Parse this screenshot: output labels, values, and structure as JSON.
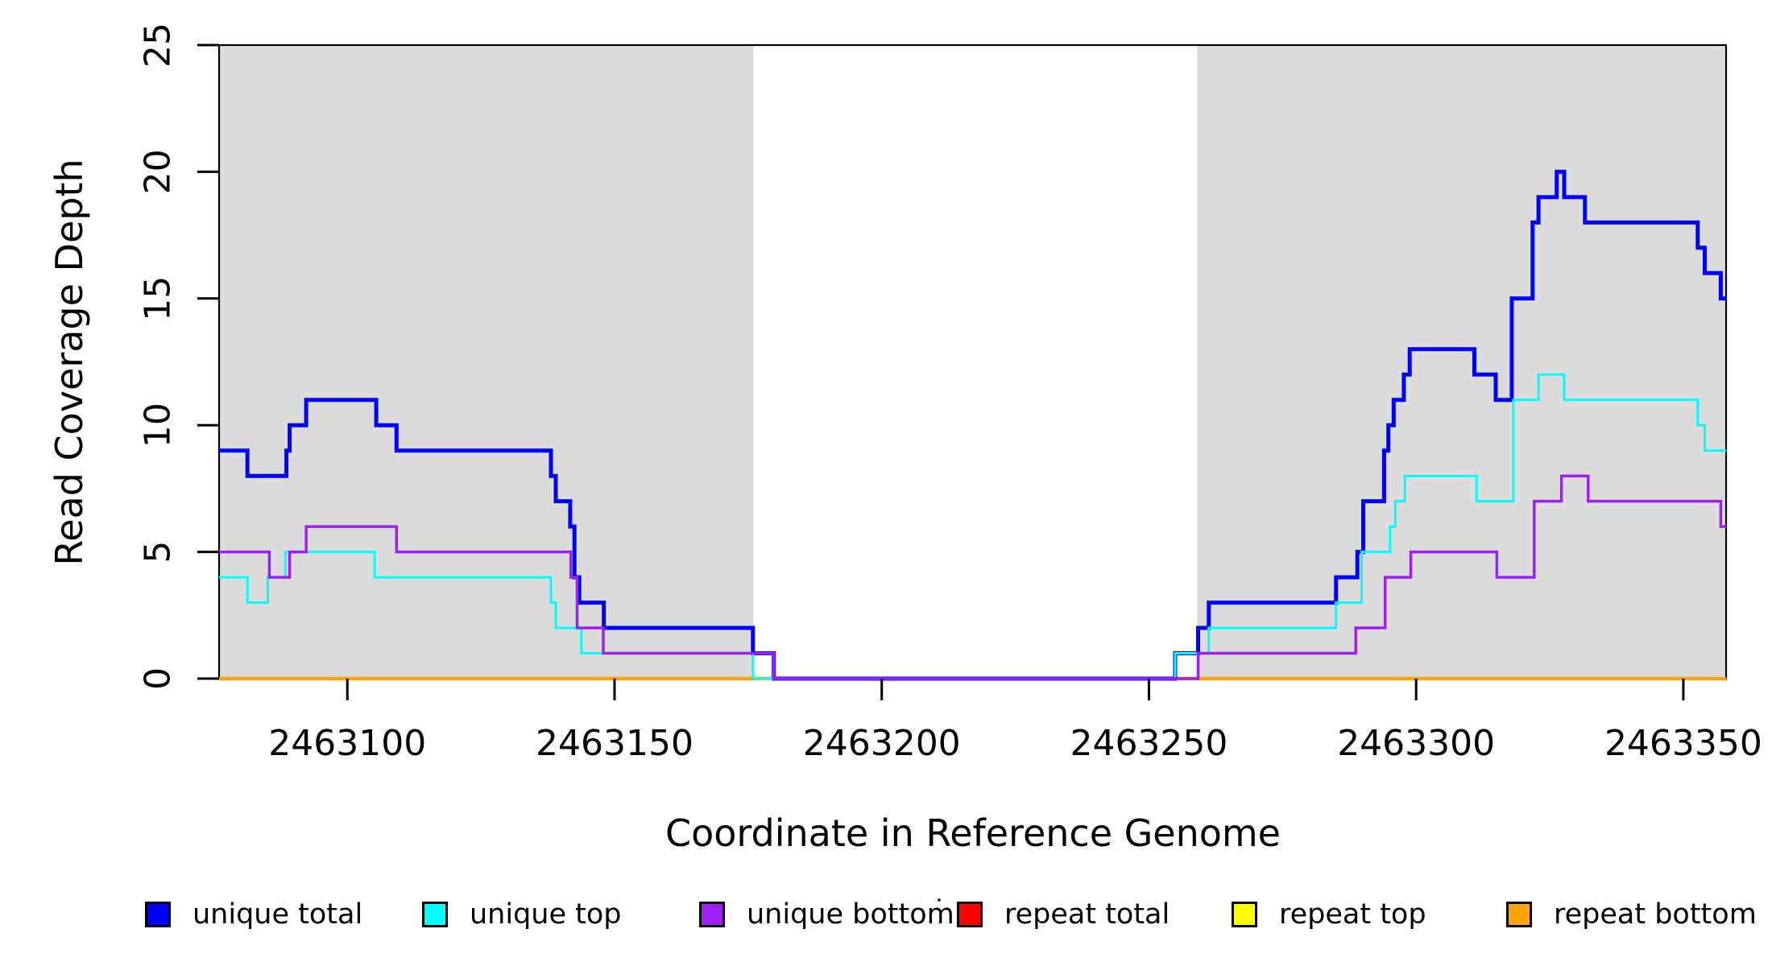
{
  "figure": {
    "background_color": "#FFFFFF",
    "shaded_region_color": "#DCDCDC",
    "axis_color": "#000000",
    "text_color": "#000000"
  },
  "chart_data": {
    "type": "line",
    "subtype": "step-coverage-plot",
    "title": "",
    "xlabel": "Coordinate in Reference Genome",
    "ylabel": "Read Coverage Depth",
    "xlim": [
      2463076,
      2463358
    ],
    "ylim": [
      0,
      25
    ],
    "x_ticks": [
      2463100,
      2463150,
      2463200,
      2463250,
      2463300,
      2463350
    ],
    "y_ticks": [
      0,
      5,
      10,
      15,
      20,
      25
    ],
    "grid": false,
    "legend_position": "bottom-horizontal",
    "shaded_regions": [
      {
        "name": "left-repeat-flank",
        "x0": 2463076,
        "x1": 2463176
      },
      {
        "name": "right-repeat-flank",
        "x0": 2463259,
        "x1": 2463358
      }
    ],
    "series": [
      {
        "label": "unique total",
        "color": "#0000FF",
        "line_width": 5,
        "draw_order": 4,
        "end_x": 2463358,
        "steps": [
          [
            2463076,
            9
          ],
          [
            2463081.3,
            8
          ],
          [
            2463088.6,
            9
          ],
          [
            2463089.2,
            10
          ],
          [
            2463092.3,
            11
          ],
          [
            2463105.4,
            10
          ],
          [
            2463109.2,
            9
          ],
          [
            2463138.1,
            8
          ],
          [
            2463139,
            7
          ],
          [
            2463141.7,
            6
          ],
          [
            2463142.5,
            4
          ],
          [
            2463143.4,
            3
          ],
          [
            2463148,
            2
          ],
          [
            2463175.9,
            1
          ],
          [
            2463179.8,
            0
          ],
          [
            2463254.9,
            1
          ],
          [
            2463259.2,
            2
          ],
          [
            2463261.2,
            3
          ],
          [
            2463285,
            4
          ],
          [
            2463289,
            5
          ],
          [
            2463290.1,
            7
          ],
          [
            2463294,
            9
          ],
          [
            2463294.8,
            10
          ],
          [
            2463295.8,
            11
          ],
          [
            2463297.7,
            12
          ],
          [
            2463298.8,
            13
          ],
          [
            2463310.9,
            12
          ],
          [
            2463314.9,
            11
          ],
          [
            2463317.9,
            15
          ],
          [
            2463321.8,
            18
          ],
          [
            2463322.9,
            19
          ],
          [
            2463326.3,
            20
          ],
          [
            2463327.7,
            19
          ],
          [
            2463331.6,
            18
          ],
          [
            2463352.7,
            17
          ],
          [
            2463354,
            16
          ],
          [
            2463357,
            15
          ]
        ]
      },
      {
        "label": "unique top",
        "color": "#00FFFF",
        "line_width": 3,
        "draw_order": 5,
        "end_x": 2463358,
        "steps": [
          [
            2463076,
            4
          ],
          [
            2463081.3,
            3
          ],
          [
            2463085.1,
            4
          ],
          [
            2463088.4,
            5
          ],
          [
            2463105.1,
            4
          ],
          [
            2463138.1,
            3
          ],
          [
            2463139,
            2
          ],
          [
            2463143.8,
            1
          ],
          [
            2463175.9,
            0
          ],
          [
            2463254.9,
            1
          ],
          [
            2463261.2,
            2
          ],
          [
            2463285,
            3
          ],
          [
            2463289.8,
            5
          ],
          [
            2463295.1,
            6
          ],
          [
            2463296.1,
            7
          ],
          [
            2463297.9,
            8
          ],
          [
            2463311.3,
            7
          ],
          [
            2463318.2,
            11
          ],
          [
            2463322.9,
            12
          ],
          [
            2463327.7,
            11
          ],
          [
            2463352.7,
            10
          ],
          [
            2463354,
            9
          ]
        ]
      },
      {
        "label": "unique bottom",
        "color": "#A020F0",
        "line_width": 3.5,
        "draw_order": 6,
        "end_x": 2463358,
        "steps": [
          [
            2463076,
            5
          ],
          [
            2463085.4,
            4
          ],
          [
            2463089.2,
            5
          ],
          [
            2463092.3,
            6
          ],
          [
            2463109.2,
            5
          ],
          [
            2463141.8,
            4
          ],
          [
            2463143,
            2
          ],
          [
            2463147.9,
            1
          ],
          [
            2463179.8,
            0
          ],
          [
            2463259.2,
            1
          ],
          [
            2463288.7,
            2
          ],
          [
            2463294.2,
            4
          ],
          [
            2463299,
            5
          ],
          [
            2463315.1,
            4
          ],
          [
            2463322.1,
            7
          ],
          [
            2463327.2,
            8
          ],
          [
            2463332.2,
            7
          ],
          [
            2463357,
            6
          ]
        ]
      },
      {
        "label": "repeat total",
        "color": "#FF0000",
        "line_width": 3,
        "draw_order": 1,
        "end_x": 2463358,
        "steps": [
          [
            2463076,
            0
          ]
        ]
      },
      {
        "label": "repeat top",
        "color": "#FFFF00",
        "line_width": 3,
        "draw_order": 2,
        "end_x": 2463358,
        "steps": [
          [
            2463076,
            0
          ]
        ]
      },
      {
        "label": "repeat bottom",
        "color": "#FFA500",
        "line_width": 4.5,
        "draw_order": 3,
        "end_x": 2463358,
        "steps": [
          [
            2463076,
            0
          ]
        ]
      }
    ]
  }
}
